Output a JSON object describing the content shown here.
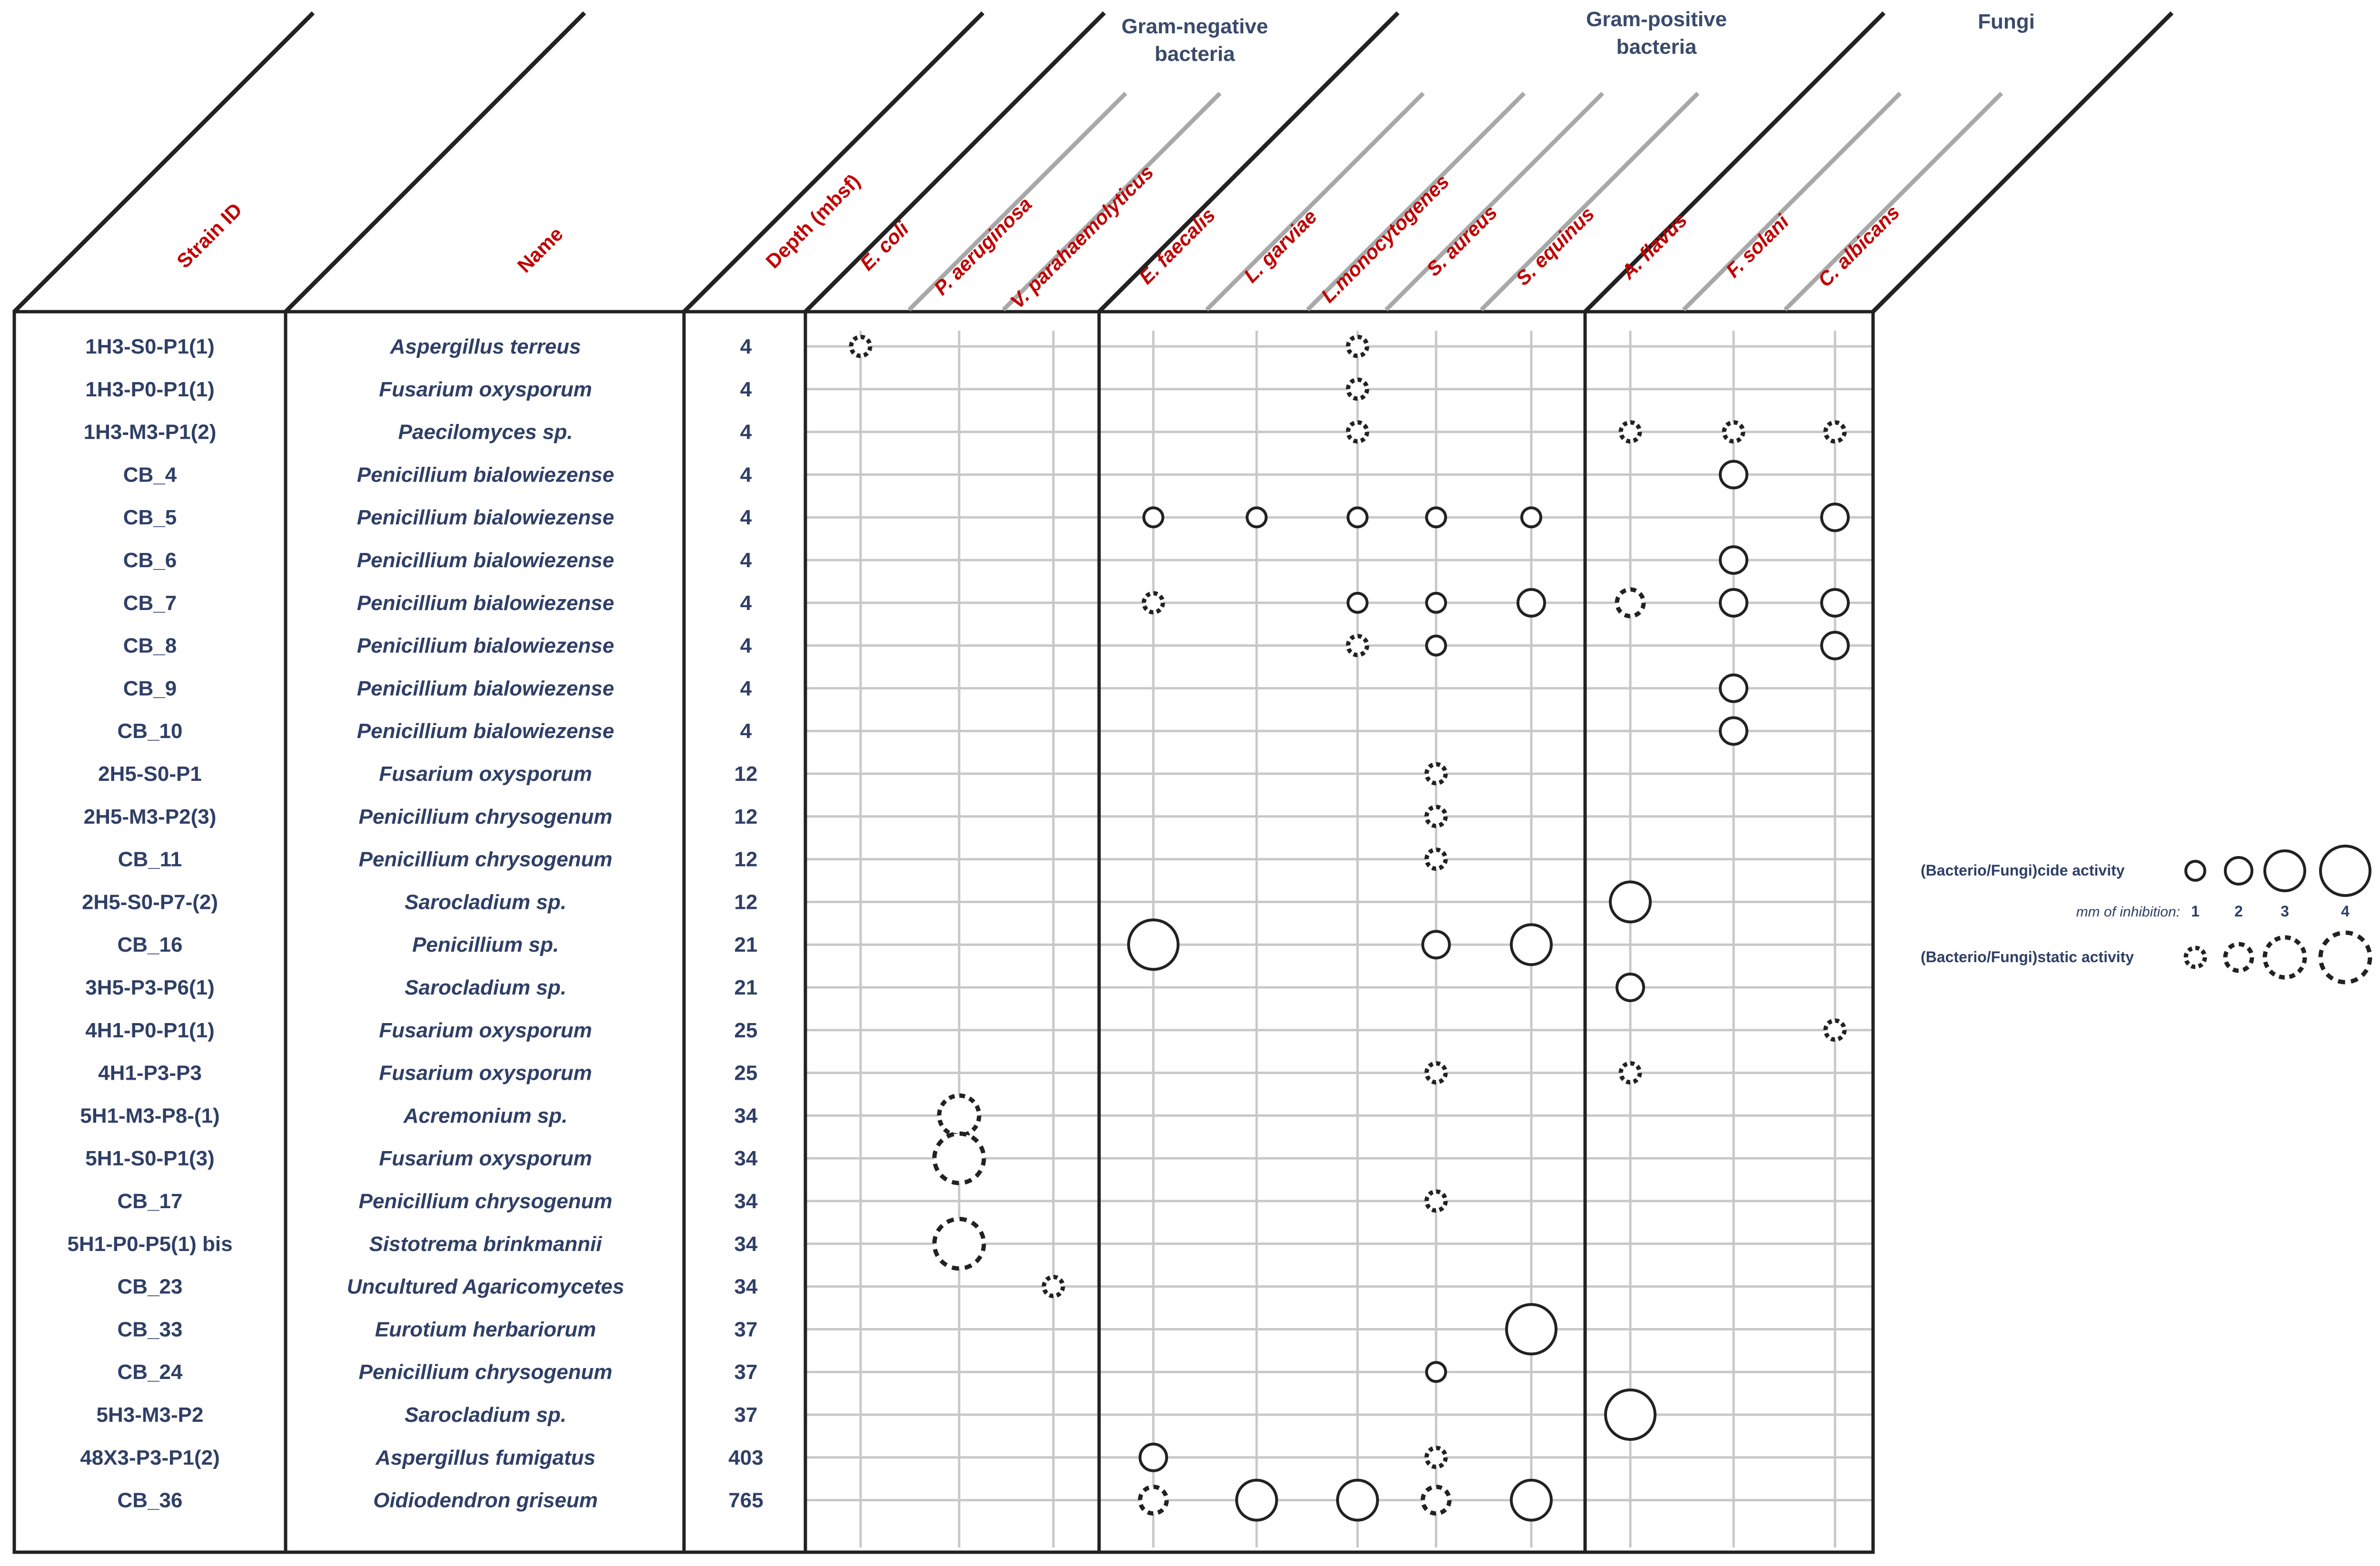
{
  "chart_data": {
    "type": "table",
    "title": "",
    "column_headers": {
      "strain_id": "Strain ID",
      "name": "Name",
      "depth": "Depth (mbsf)"
    },
    "groups": [
      {
        "label_lines": [
          "Gram-negative",
          "bacteria"
        ],
        "from": 0,
        "to": 2
      },
      {
        "label_lines": [
          "Gram-positive",
          "bacteria"
        ],
        "from": 3,
        "to": 7
      },
      {
        "label_lines": [
          "Fungi"
        ],
        "from": 8,
        "to": 10
      }
    ],
    "targets": [
      "E. coli",
      "P. aeruginosa",
      "V. parahaemolyticus",
      "E. faecalis",
      "L. garviae",
      "L.monocytogenes",
      "S. aureus",
      "S. equinus",
      "A. flavus",
      "F. solani",
      "C. albicans"
    ],
    "rows": [
      {
        "id": "1H3-S0-P1(1)",
        "name": "Aspergillus terreus",
        "depth": "4"
      },
      {
        "id": "1H3-P0-P1(1)",
        "name": "Fusarium oxysporum",
        "depth": "4"
      },
      {
        "id": "1H3-M3-P1(2)",
        "name": "Paecilomyces sp.",
        "depth": "4"
      },
      {
        "id": "CB_4",
        "name": "Penicillium bialowiezense",
        "depth": "4"
      },
      {
        "id": "CB_5",
        "name": "Penicillium bialowiezense",
        "depth": "4"
      },
      {
        "id": "CB_6",
        "name": "Penicillium bialowiezense",
        "depth": "4"
      },
      {
        "id": "CB_7",
        "name": "Penicillium bialowiezense",
        "depth": "4"
      },
      {
        "id": "CB_8",
        "name": "Penicillium bialowiezense",
        "depth": "4"
      },
      {
        "id": "CB_9",
        "name": "Penicillium bialowiezense",
        "depth": "4"
      },
      {
        "id": "CB_10",
        "name": "Penicillium bialowiezense",
        "depth": "4"
      },
      {
        "id": "2H5-S0-P1",
        "name": "Fusarium oxysporum",
        "depth": "12"
      },
      {
        "id": "2H5-M3-P2(3)",
        "name": "Penicillium chrysogenum",
        "depth": "12"
      },
      {
        "id": "CB_11",
        "name": "Penicillium chrysogenum",
        "depth": "12"
      },
      {
        "id": "2H5-S0-P7-(2)",
        "name": "Sarocladium sp.",
        "depth": "12"
      },
      {
        "id": "CB_16",
        "name": "Penicillium sp.",
        "depth": "21"
      },
      {
        "id": "3H5-P3-P6(1)",
        "name": "Sarocladium sp.",
        "depth": "21"
      },
      {
        "id": "4H1-P0-P1(1)",
        "name": "Fusarium oxysporum",
        "depth": "25"
      },
      {
        "id": "4H1-P3-P3",
        "name": "Fusarium oxysporum",
        "depth": "25"
      },
      {
        "id": "5H1-M3-P8-(1)",
        "name": "Acremonium sp.",
        "depth": "34"
      },
      {
        "id": "5H1-S0-P1(3)",
        "name": "Fusarium oxysporum",
        "depth": "34"
      },
      {
        "id": "CB_17",
        "name": "Penicillium chrysogenum",
        "depth": "34"
      },
      {
        "id": "5H1-P0-P5(1) bis",
        "name": "Sistotrema brinkmannii",
        "depth": "34"
      },
      {
        "id": "CB_23",
        "name": "Uncultured Agaricomycetes",
        "depth": "34"
      },
      {
        "id": "CB_33",
        "name": "Eurotium herbariorum",
        "depth": "37"
      },
      {
        "id": "CB_24",
        "name": "Penicillium chrysogenum",
        "depth": "37"
      },
      {
        "id": "5H3-M3-P2",
        "name": "Sarocladium sp.",
        "depth": "37"
      },
      {
        "id": "48X3-P3-P1(2)",
        "name": "Aspergillus fumigatus",
        "depth": "403"
      },
      {
        "id": "CB_36",
        "name": "Oidiodendron griseum",
        "depth": "765"
      }
    ],
    "activity_note": "Each entry: row index, target index, activity type (cide = solid circle, static = dashed circle), inhibition in mm (1-4)",
    "activities": [
      [
        0,
        0,
        "static",
        1
      ],
      [
        0,
        5,
        "static",
        1
      ],
      [
        1,
        5,
        "static",
        1
      ],
      [
        2,
        5,
        "static",
        1
      ],
      [
        2,
        8,
        "static",
        1
      ],
      [
        2,
        9,
        "static",
        1
      ],
      [
        2,
        10,
        "static",
        1
      ],
      [
        3,
        9,
        "cide",
        2
      ],
      [
        4,
        3,
        "cide",
        1
      ],
      [
        4,
        4,
        "cide",
        1
      ],
      [
        4,
        5,
        "cide",
        1
      ],
      [
        4,
        6,
        "cide",
        1
      ],
      [
        4,
        7,
        "cide",
        1
      ],
      [
        4,
        10,
        "cide",
        2
      ],
      [
        5,
        9,
        "cide",
        2
      ],
      [
        6,
        3,
        "static",
        1
      ],
      [
        6,
        5,
        "cide",
        1
      ],
      [
        6,
        6,
        "cide",
        1
      ],
      [
        6,
        7,
        "cide",
        2
      ],
      [
        6,
        8,
        "static",
        2
      ],
      [
        6,
        9,
        "cide",
        2
      ],
      [
        6,
        10,
        "cide",
        2
      ],
      [
        7,
        5,
        "static",
        1
      ],
      [
        7,
        6,
        "cide",
        1
      ],
      [
        7,
        10,
        "cide",
        2
      ],
      [
        8,
        9,
        "cide",
        2
      ],
      [
        9,
        9,
        "cide",
        2
      ],
      [
        10,
        6,
        "static",
        1
      ],
      [
        11,
        6,
        "static",
        1
      ],
      [
        12,
        6,
        "static",
        1
      ],
      [
        13,
        8,
        "cide",
        3
      ],
      [
        14,
        3,
        "cide",
        4
      ],
      [
        14,
        6,
        "cide",
        2
      ],
      [
        14,
        7,
        "cide",
        3
      ],
      [
        15,
        8,
        "cide",
        2
      ],
      [
        16,
        10,
        "static",
        1
      ],
      [
        17,
        6,
        "static",
        1
      ],
      [
        17,
        8,
        "static",
        1
      ],
      [
        18,
        1,
        "static",
        3
      ],
      [
        19,
        1,
        "static",
        4
      ],
      [
        20,
        6,
        "static",
        1
      ],
      [
        21,
        1,
        "static",
        4
      ],
      [
        22,
        2,
        "static",
        1
      ],
      [
        23,
        7,
        "cide",
        4
      ],
      [
        24,
        6,
        "cide",
        1
      ],
      [
        25,
        8,
        "cide",
        4
      ],
      [
        26,
        3,
        "cide",
        2
      ],
      [
        26,
        6,
        "static",
        1
      ],
      [
        27,
        3,
        "static",
        2
      ],
      [
        27,
        4,
        "cide",
        3
      ],
      [
        27,
        5,
        "cide",
        3
      ],
      [
        27,
        6,
        "static",
        2
      ],
      [
        27,
        7,
        "cide",
        3
      ]
    ],
    "legend": {
      "cide_label": "(Bacterio/Fungi)cide activity",
      "static_label": "(Bacterio/Fungi)static activity",
      "mm_label": "mm of inhibition:",
      "levels": [
        "1",
        "2",
        "3",
        "4"
      ]
    }
  }
}
